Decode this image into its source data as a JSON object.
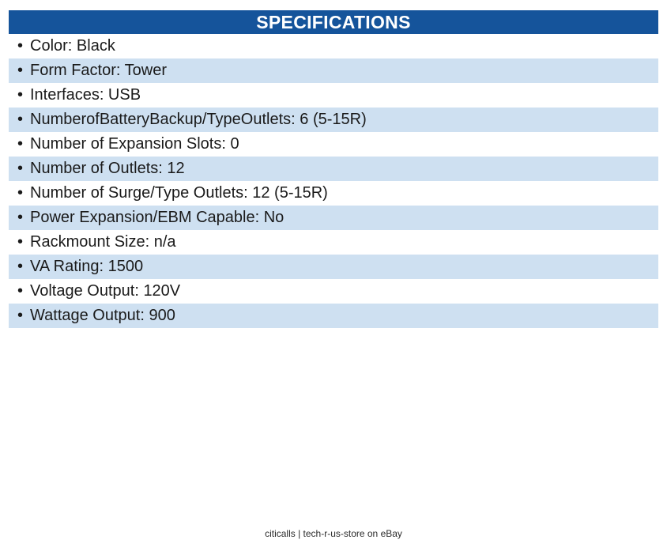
{
  "header": {
    "title": "SPECIFICATIONS"
  },
  "table": {
    "bullet_glyph": "•",
    "rows": [
      {
        "text": "Color: Black"
      },
      {
        "text": "Form Factor: Tower"
      },
      {
        "text": "Interfaces: USB"
      },
      {
        "text": "NumberofBatteryBackup/TypeOutlets: 6 (5-15R)"
      },
      {
        "text": "Number of Expansion Slots: 0"
      },
      {
        "text": "Number of Outlets: 12"
      },
      {
        "text": "Number of Surge/Type Outlets: 12 (5-15R)"
      },
      {
        "text": "Power Expansion/EBM Capable: No"
      },
      {
        "text": "Rackmount Size: n/a"
      },
      {
        "text": "VA Rating: 1500"
      },
      {
        "text": "Voltage Output: 120V"
      },
      {
        "text": "Wattage Output: 900"
      }
    ]
  },
  "colors": {
    "header_bg": "#15549b",
    "header_text": "#ffffff",
    "row_alt_bg": "#cee0f1",
    "row_text": "#1a1a1a"
  },
  "footer": {
    "text": "citicalls | tech-r-us-store on eBay"
  }
}
